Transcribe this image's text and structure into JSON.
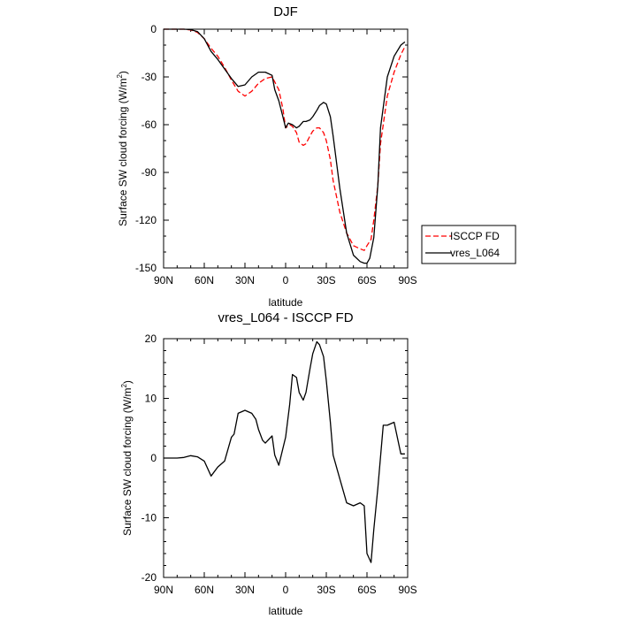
{
  "chart_data": [
    {
      "type": "line",
      "title": "DJF",
      "xlabel": "latitude",
      "ylabel": "Surface SW cloud forcing (W/m²)",
      "ylabel_main": "Surface SW cloud forcing (W/m",
      "ylabel_sup": "2",
      "ylabel_close": ")",
      "xlim": [
        90,
        -90
      ],
      "ylim": [
        -150,
        0
      ],
      "x_ticks": [
        90,
        60,
        30,
        0,
        -30,
        -60,
        -90
      ],
      "x_tick_labels": [
        "90N",
        "60N",
        "30N",
        "0",
        "30S",
        "60S",
        "90S"
      ],
      "y_ticks": [
        0,
        -30,
        -60,
        -90,
        -120,
        -150
      ],
      "y_tick_labels": [
        "0",
        "-30",
        "-60",
        "-90",
        "-120",
        "-150"
      ],
      "legend_position": "right",
      "series": [
        {
          "name": "ISCCP FD",
          "color": "#ff0000",
          "style": "dashed",
          "x": [
            90,
            85,
            80,
            75,
            70,
            65,
            60,
            55,
            50,
            45,
            40,
            35,
            30,
            25,
            20,
            15,
            10,
            5,
            2,
            0,
            -3,
            -5,
            -8,
            -10,
            -13,
            -15,
            -18,
            -20,
            -23,
            -25,
            -28,
            -30,
            -33,
            -35,
            -40,
            -45,
            -50,
            -55,
            -58,
            -60,
            -63,
            -65,
            -68,
            -70,
            -75,
            -80,
            -85,
            -88
          ],
          "values": [
            0,
            0,
            0,
            0,
            -0.5,
            -2,
            -6,
            -12,
            -17,
            -24,
            -32,
            -39,
            -42,
            -39,
            -34,
            -31,
            -30,
            -38,
            -50,
            -62,
            -60,
            -61,
            -65,
            -71,
            -73,
            -72,
            -67,
            -64,
            -62,
            -62,
            -65,
            -70,
            -82,
            -95,
            -115,
            -128,
            -136,
            -138,
            -139,
            -136,
            -132,
            -120,
            -98,
            -72,
            -42,
            -27,
            -16,
            -11
          ]
        },
        {
          "name": "vres_L064",
          "color": "#000000",
          "style": "solid",
          "x": [
            90,
            85,
            80,
            75,
            70,
            65,
            60,
            55,
            50,
            45,
            40,
            35,
            30,
            25,
            20,
            15,
            10,
            8,
            5,
            2,
            0,
            -2,
            -5,
            -8,
            -10,
            -13,
            -15,
            -18,
            -20,
            -23,
            -25,
            -28,
            -30,
            -33,
            -35,
            -40,
            -45,
            -50,
            -55,
            -58,
            -60,
            -62,
            -65,
            -68,
            -70,
            -75,
            -80,
            -85,
            -88
          ],
          "values": [
            0,
            0,
            0,
            0,
            -0.3,
            -1.5,
            -6,
            -14,
            -19,
            -25,
            -31,
            -36,
            -35,
            -30,
            -27,
            -27,
            -29,
            -38,
            -45,
            -55,
            -62,
            -59,
            -60,
            -62,
            -61,
            -58,
            -58,
            -57,
            -55,
            -51,
            -48,
            -46,
            -47,
            -55,
            -67,
            -100,
            -128,
            -142,
            -146,
            -147,
            -147,
            -144,
            -131,
            -98,
            -62,
            -30,
            -17,
            -10,
            -8
          ]
        }
      ]
    },
    {
      "type": "line",
      "title": "vres_L064 - ISCCP FD",
      "xlabel": "latitude",
      "ylabel": "Surface SW cloud forcing (W/m²)",
      "ylabel_main": "Surface SW cloud forcing (W/m",
      "ylabel_sup": "2",
      "ylabel_close": ")",
      "xlim": [
        90,
        -90
      ],
      "ylim": [
        -20,
        20
      ],
      "x_ticks": [
        90,
        60,
        30,
        0,
        -30,
        -60,
        -90
      ],
      "x_tick_labels": [
        "90N",
        "60N",
        "30N",
        "0",
        "30S",
        "60S",
        "90S"
      ],
      "y_ticks": [
        20,
        10,
        0,
        -10,
        -20
      ],
      "y_tick_labels": [
        "20",
        "10",
        "0",
        "-10",
        "-20"
      ],
      "series": [
        {
          "name": "vres_L064 - ISCCP FD",
          "color": "#000000",
          "style": "solid",
          "x": [
            90,
            85,
            80,
            75,
            70,
            65,
            60,
            55,
            50,
            45,
            40,
            38,
            35,
            30,
            25,
            22,
            20,
            17,
            15,
            10,
            8,
            5,
            0,
            -3,
            -5,
            -8,
            -10,
            -13,
            -15,
            -18,
            -20,
            -23,
            -25,
            -28,
            -30,
            -33,
            -35,
            -40,
            -45,
            -50,
            -55,
            -58,
            -60,
            -63,
            -65,
            -68,
            -72,
            -75,
            -80,
            -85,
            -88
          ],
          "values": [
            0,
            0,
            0,
            0.1,
            0.4,
            0.2,
            -0.5,
            -3,
            -1.5,
            -0.5,
            3.5,
            4,
            7.5,
            8,
            7.5,
            6.5,
            4.8,
            3,
            2.5,
            3.7,
            0.5,
            -1.2,
            3.5,
            9,
            14,
            13.5,
            11,
            9.7,
            11,
            15,
            17.5,
            19.5,
            19,
            17,
            13,
            6,
            0.5,
            -3.5,
            -7.5,
            -8,
            -7.5,
            -8,
            -16,
            -17.5,
            -12,
            -5,
            5.5,
            5.5,
            6,
            0.7,
            0.7
          ]
        }
      ]
    }
  ]
}
